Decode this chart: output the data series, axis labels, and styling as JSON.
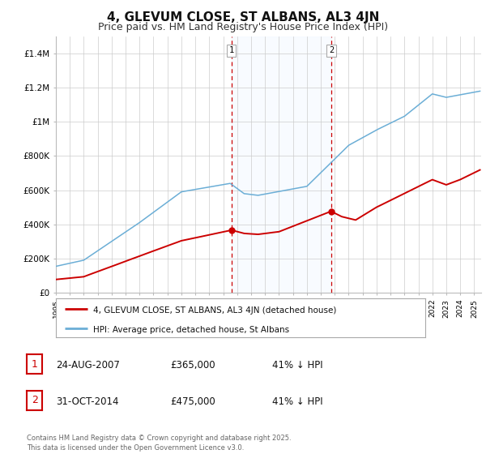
{
  "title": "4, GLEVUM CLOSE, ST ALBANS, AL3 4JN",
  "subtitle": "Price paid vs. HM Land Registry's House Price Index (HPI)",
  "title_fontsize": 11,
  "subtitle_fontsize": 9,
  "background_color": "#ffffff",
  "plot_bg_color": "#ffffff",
  "grid_color": "#cccccc",
  "hpi_line_color": "#6baed6",
  "price_line_color": "#cc0000",
  "shade_color": "#ddeeff",
  "vline_color": "#cc0000",
  "ylim_min": 0,
  "ylim_max": 1500000,
  "ytick_values": [
    0,
    200000,
    400000,
    600000,
    800000,
    1000000,
    1200000,
    1400000
  ],
  "ytick_labels": [
    "£0",
    "£200K",
    "£400K",
    "£600K",
    "£800K",
    "£1M",
    "£1.2M",
    "£1.4M"
  ],
  "legend_label_price": "4, GLEVUM CLOSE, ST ALBANS, AL3 4JN (detached house)",
  "legend_label_hpi": "HPI: Average price, detached house, St Albans",
  "table_entries": [
    {
      "num": "1",
      "date": "24-AUG-2007",
      "price": "£365,000",
      "hpi": "41% ↓ HPI"
    },
    {
      "num": "2",
      "date": "31-OCT-2014",
      "price": "£475,000",
      "hpi": "41% ↓ HPI"
    }
  ],
  "footer": "Contains HM Land Registry data © Crown copyright and database right 2025.\nThis data is licensed under the Open Government Licence v3.0.",
  "marker1_t": 2007.583,
  "marker2_t": 2014.75,
  "marker1_price": 365000,
  "marker2_price": 475000
}
